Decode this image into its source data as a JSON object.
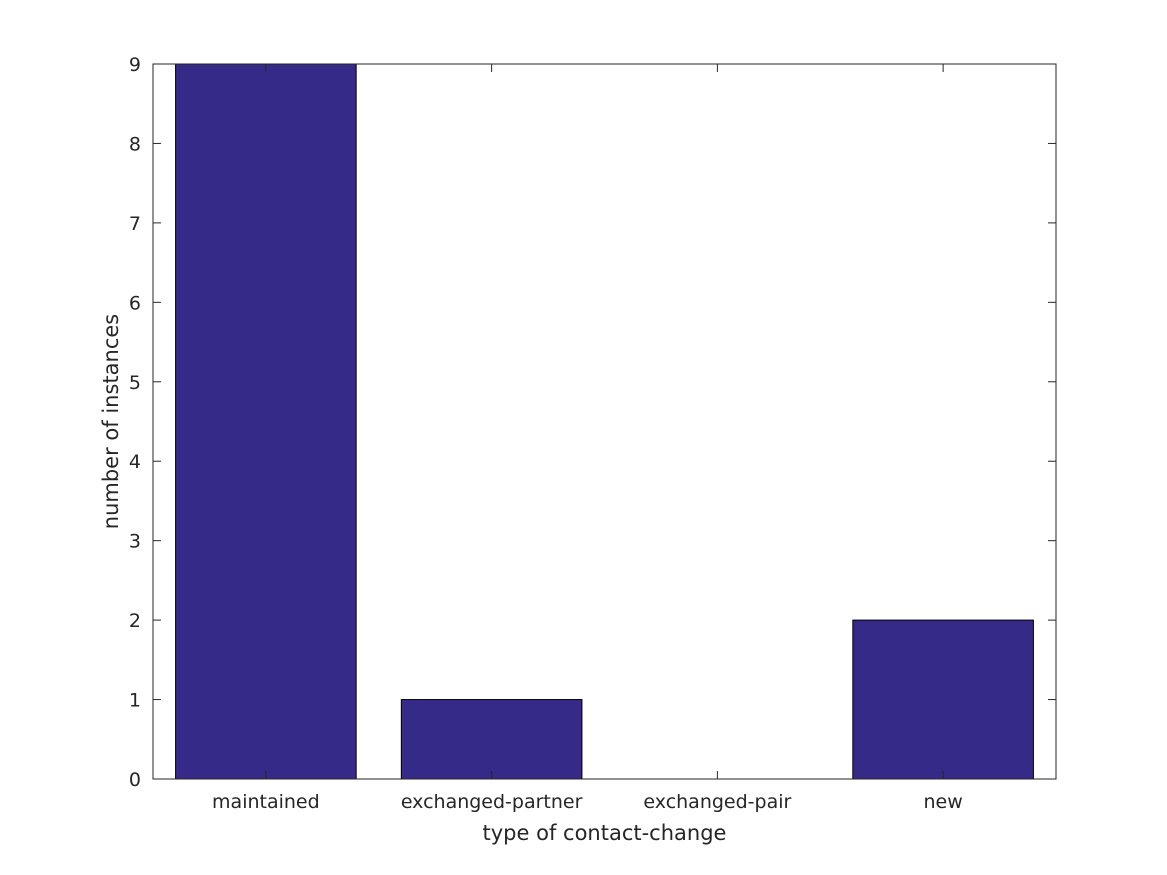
{
  "chart_data": {
    "type": "bar",
    "title": "",
    "xlabel": "type of contact-change",
    "ylabel": "number of instances",
    "categories": [
      "maintained",
      "exchanged-partner",
      "exchanged-pair",
      "new"
    ],
    "values": [
      9,
      1,
      0,
      2
    ],
    "ylim": [
      0,
      9
    ],
    "yticks": [
      "0",
      "1",
      "2",
      "3",
      "4",
      "5",
      "6",
      "7",
      "8",
      "9"
    ],
    "grid": false,
    "bar_color": "#352a87",
    "bar_edge_color": "#000000",
    "axis_color": "#262626"
  }
}
